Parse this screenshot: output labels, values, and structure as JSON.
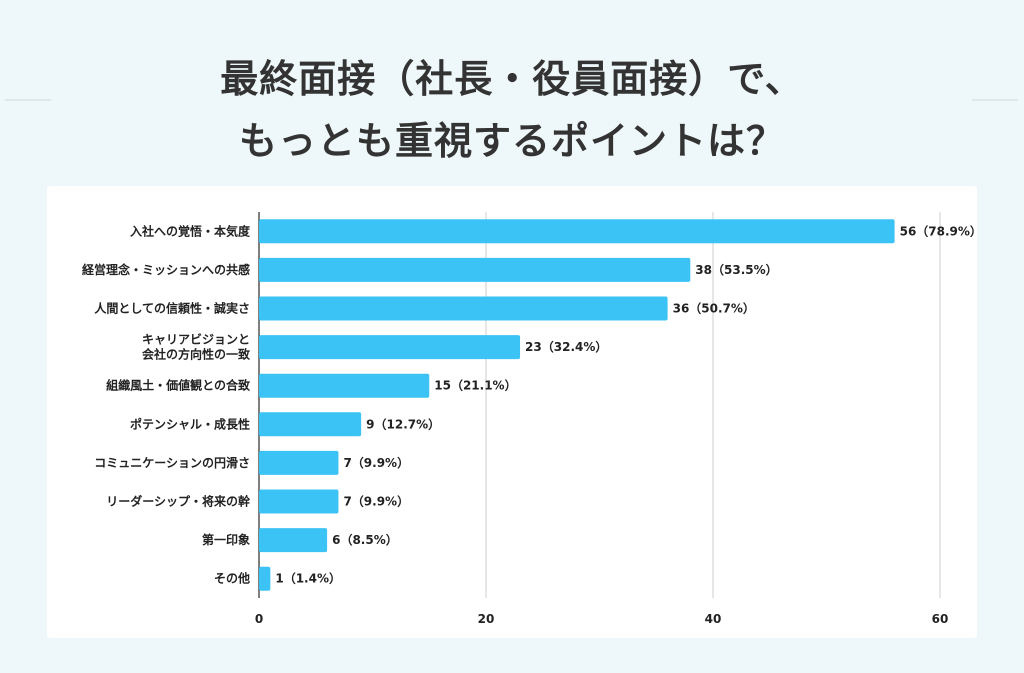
{
  "title_lines": [
    "最終面接（社長・役員面接）で、",
    "もっとも重視するポイントは？"
  ],
  "chart_data": {
    "type": "bar",
    "orientation": "horizontal",
    "categories": [
      [
        "入社への覚悟・本気度"
      ],
      [
        "経営理念・ミッションへの共感"
      ],
      [
        "人間としての信頼性・誠実さ"
      ],
      [
        "キャリアビジョンと",
        "会社の方向性の一致"
      ],
      [
        "組織風土・価値観との合致"
      ],
      [
        "ポテンシャル・成長性"
      ],
      [
        "コミュニケーションの円滑さ"
      ],
      [
        "リーダーシップ・将来の幹"
      ],
      [
        "第一印象"
      ],
      [
        "その他"
      ]
    ],
    "values": [
      56,
      38,
      36,
      23,
      15,
      9,
      7,
      7,
      6,
      1
    ],
    "data_labels": [
      "56（78.9%）",
      "38（53.5%）",
      "36（50.7%）",
      "23（32.4%）",
      "15（21.1%）",
      "9（12.7%）",
      "7（9.9%）",
      "7（9.9%）",
      "6（8.5%）",
      "1（1.4%）"
    ],
    "xlim": [
      0,
      60
    ],
    "xticks": [
      0,
      20,
      40,
      60
    ],
    "grid": true,
    "bar_color": "#3cc3f5",
    "grid_color": "#cccccc"
  }
}
